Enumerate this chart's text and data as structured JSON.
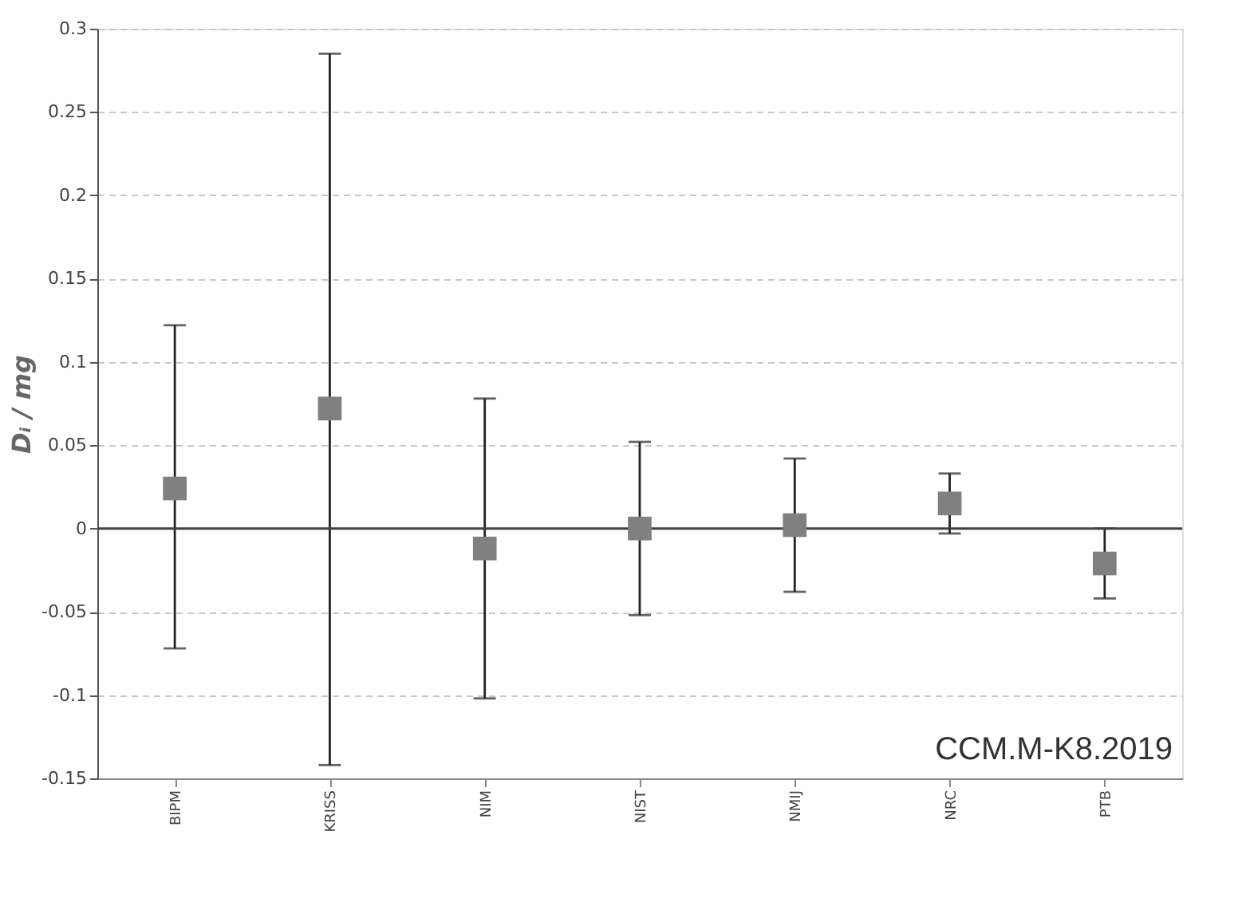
{
  "chart_data": {
    "type": "scatter",
    "ylabel": "Dᵢ / mg",
    "categories": [
      "BIPM",
      "KRISS",
      "NIM",
      "NIST",
      "NMIJ",
      "NRC",
      "PTB"
    ],
    "values": [
      0.024,
      0.072,
      -0.012,
      0.0,
      0.002,
      0.015,
      -0.021
    ],
    "errors": [
      [
        -0.072,
        0.122
      ],
      [
        -0.142,
        0.285
      ],
      [
        -0.102,
        0.078
      ],
      [
        -0.052,
        0.052
      ],
      [
        -0.038,
        0.042
      ],
      [
        -0.003,
        0.033
      ],
      [
        -0.042,
        0.0
      ]
    ],
    "color": "#808080",
    "marker": "square",
    "ylim": [
      -0.15,
      0.3
    ],
    "yticks": [
      -0.15,
      -0.1,
      -0.05,
      0,
      0.05,
      0.1,
      0.15,
      0.2,
      0.25,
      0.3
    ],
    "grid": "y",
    "ref_lines": [
      {
        "axis": "y",
        "value": 0,
        "color": "#404040",
        "line_style": "solid"
      }
    ],
    "annotations": [
      "CCM.M-K8.2019"
    ]
  }
}
